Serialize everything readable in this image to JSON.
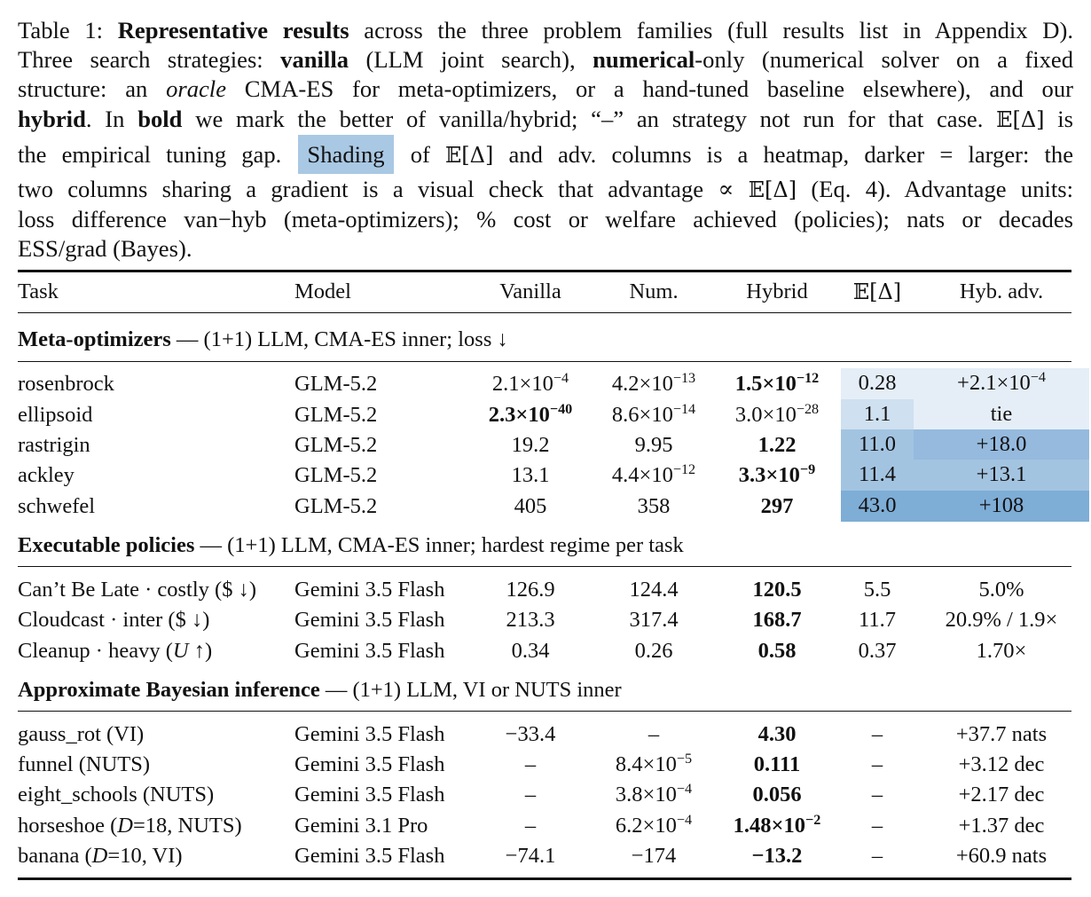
{
  "caption": {
    "line1": {
      "a": "Table 1: ",
      "b": "Representative results",
      "c": " across the three problem families (full results list in Appendix D)."
    },
    "line2": {
      "a": "Three search strategies: ",
      "b": "vanilla",
      "c": " (LLM joint search), ",
      "d": "numerical",
      "e": "-only (numerical solver on a fixed"
    },
    "line3": {
      "a": "structure: an ",
      "b": "oracle",
      "c": " CMA-ES for meta-optimizers, or a hand-tuned baseline elsewhere), and our"
    },
    "line4": {
      "a": "hybrid",
      "b": ". In ",
      "c": "bold",
      "d": " we mark the better of vanilla/hybrid; “–” an strategy not run for that case. ",
      "e": "𝔼[Δ]",
      "f": " is"
    },
    "line5": {
      "a": "the empirical tuning gap. ",
      "b": "Shading",
      "c": " of ",
      "d": "𝔼[Δ]",
      "e": " and adv. columns is a heatmap, darker = larger: the"
    },
    "line6": {
      "a": "two columns sharing a gradient is a visual check that advantage ∝ ",
      "b": "𝔼[Δ]",
      "c": " (Eq. 4). Advantage units:"
    },
    "line7": "loss difference van−hyb (meta-optimizers); % cost or welfare achieved (policies); nats or decades",
    "line8": "ESS/grad (Bayes)."
  },
  "header": {
    "task": "Task",
    "model": "Model",
    "vanilla": "Vanilla",
    "num": "Num.",
    "hybrid": "Hybrid",
    "ed": "𝔼[Δ]",
    "adv": "Hyb. adv."
  },
  "sections": {
    "meta": {
      "title": "Meta-optimizers",
      "desc": " — (1+1) LLM, CMA-ES inner; loss ↓"
    },
    "policies": {
      "title": "Executable policies",
      "desc": " — (1+1) LLM, CMA-ES inner; hardest regime per task"
    },
    "bayes": {
      "title": "Approximate Bayesian inference",
      "desc": " — (1+1) LLM, VI or NUTS inner"
    }
  },
  "rows": {
    "rosenbrock": {
      "task": "rosenbrock",
      "model": "GLM-5.2",
      "van_m": "2.1×10",
      "van_e": "−4",
      "num_m": "4.2×10",
      "num_e": "−13",
      "hyb_m": "1.5×10",
      "hyb_e": "−12",
      "ed": "0.28",
      "adv_m": "+2.1×10",
      "adv_e": "−4",
      "ed_color": "#e5eef7",
      "adv_color": "#e5eef7"
    },
    "ellipsoid": {
      "task": "ellipsoid",
      "model": "GLM-5.2",
      "van_m": "2.3×10",
      "van_e": "−40",
      "num_m": "8.6×10",
      "num_e": "−14",
      "hyb_m": "3.0×10",
      "hyb_e": "−28",
      "ed": "1.1",
      "adv": "tie",
      "ed_color": "#cfe0f0",
      "adv_color": "#e5eef7"
    },
    "rastrigin": {
      "task": "rastrigin",
      "model": "GLM-5.2",
      "van": "19.2",
      "num": "9.95",
      "hyb": "1.22",
      "ed": "11.0",
      "adv": "+18.0",
      "ed_color": "#a3c4e1",
      "adv_color": "#95bade"
    },
    "ackley": {
      "task": "ackley",
      "model": "GLM-5.2",
      "van": "13.1",
      "num_m": "4.4×10",
      "num_e": "−12",
      "hyb_m": "3.3×10",
      "hyb_e": "−9",
      "ed": "11.4",
      "adv": "+13.1",
      "ed_color": "#a3c4e1",
      "adv_color": "#a3c4e1"
    },
    "schwefel": {
      "task": "schwefel",
      "model": "GLM-5.2",
      "van": "405",
      "num": "358",
      "hyb": "297",
      "ed": "43.0",
      "adv": "+108",
      "ed_color": "#7eadd6",
      "adv_color": "#7eadd6"
    },
    "cantbelate": {
      "task_a": "Can’t Be Late",
      "task_b": " · costly ($ ↓)",
      "model": "Gemini 3.5 Flash",
      "van": "126.9",
      "num": "124.4",
      "hyb": "120.5",
      "ed": "5.5",
      "adv": "5.0%"
    },
    "cloudcast": {
      "task_a": "Cloudcast",
      "task_b": " · inter ($ ↓)",
      "model": "Gemini 3.5 Flash",
      "van": "213.3",
      "num": "317.4",
      "hyb": "168.7",
      "ed": "11.7",
      "adv": "20.9% / 1.9×"
    },
    "cleanup": {
      "task_a": "Cleanup",
      "task_b": " · heavy (",
      "task_c": "U",
      "task_d": " ↑)",
      "model": "Gemini 3.5 Flash",
      "van": "0.34",
      "num": "0.26",
      "hyb": "0.58",
      "ed": "0.37",
      "adv": "1.70×"
    },
    "gauss_rot": {
      "task": "gauss_rot  (VI)",
      "model": "Gemini 3.5 Flash",
      "van": "−33.4",
      "num": "–",
      "hyb": "4.30",
      "ed": "–",
      "adv": "+37.7 nats"
    },
    "funnel": {
      "task": "funnel  (NUTS)",
      "model": "Gemini 3.5 Flash",
      "van": "–",
      "num_m": "8.4×10",
      "num_e": "−5",
      "hyb": "0.111",
      "ed": "–",
      "adv": "+3.12 dec"
    },
    "eight_schools": {
      "task": "eight_schools  (NUTS)",
      "model": "Gemini 3.5 Flash",
      "van": "–",
      "num_m": "3.8×10",
      "num_e": "−4",
      "hyb": "0.056",
      "ed": "–",
      "adv": "+2.17 dec"
    },
    "horseshoe": {
      "task_a": "horseshoe  (",
      "task_b": "D",
      "task_c": "=18, NUTS)",
      "model": "Gemini 3.1 Pro",
      "van": "–",
      "num_m": "6.2×10",
      "num_e": "−4",
      "hyb_m": "1.48×10",
      "hyb_e": "−2",
      "ed": "–",
      "adv": "+1.37 dec"
    },
    "banana": {
      "task_a": "banana  (",
      "task_b": "D",
      "task_c": "=10, VI)",
      "model": "Gemini 3.5 Flash",
      "van": "−74.1",
      "num": "−174",
      "hyb": "−13.2",
      "ed": "–",
      "adv": "+60.9 nats"
    }
  }
}
